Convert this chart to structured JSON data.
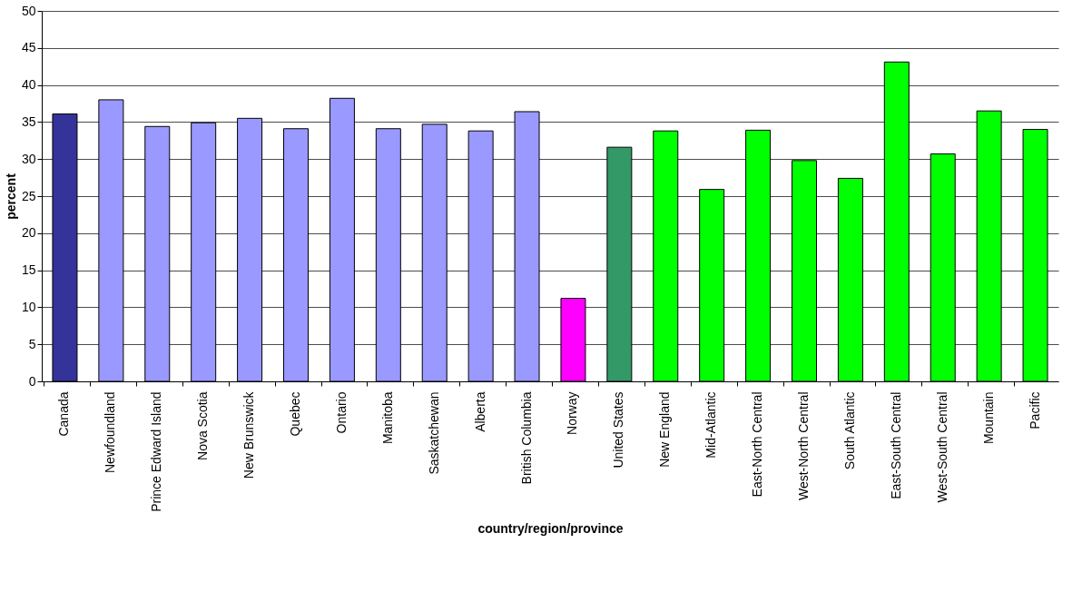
{
  "chart_data": {
    "type": "bar",
    "xlabel": "country/region/province",
    "ylabel": "percent",
    "categories": [
      "Canada",
      "Newfoundland",
      "Prince Edward Island",
      "Nova Scotia",
      "New Brunswick",
      "Quebec",
      "Ontario",
      "Manitoba",
      "Saskatchewan",
      "Alberta",
      "British Columbia",
      "Norway",
      "United States",
      "New England",
      "Mid-Atlantic",
      "East-North Central",
      "West-North Central",
      "South Atlantic",
      "East-South Central",
      "West-South Central",
      "Mountain",
      "Pacific"
    ],
    "values": [
      36.1,
      38.0,
      34.4,
      34.9,
      35.5,
      34.1,
      38.2,
      34.1,
      34.7,
      33.8,
      36.4,
      11.2,
      31.6,
      33.8,
      25.9,
      33.9,
      29.8,
      27.4,
      43.1,
      30.7,
      36.5,
      34.0
    ],
    "colors": [
      "#333399",
      "#9999ff",
      "#9999ff",
      "#9999ff",
      "#9999ff",
      "#9999ff",
      "#9999ff",
      "#9999ff",
      "#9999ff",
      "#9999ff",
      "#9999ff",
      "#ff00ff",
      "#339966",
      "#00ff00",
      "#00ff00",
      "#00ff00",
      "#00ff00",
      "#00ff00",
      "#00ff00",
      "#00ff00",
      "#00ff00",
      "#00ff00"
    ],
    "ylim": [
      0,
      50
    ],
    "yticks": [
      0,
      5,
      10,
      15,
      20,
      25,
      30,
      35,
      40,
      45,
      50
    ],
    "grid": "y"
  }
}
